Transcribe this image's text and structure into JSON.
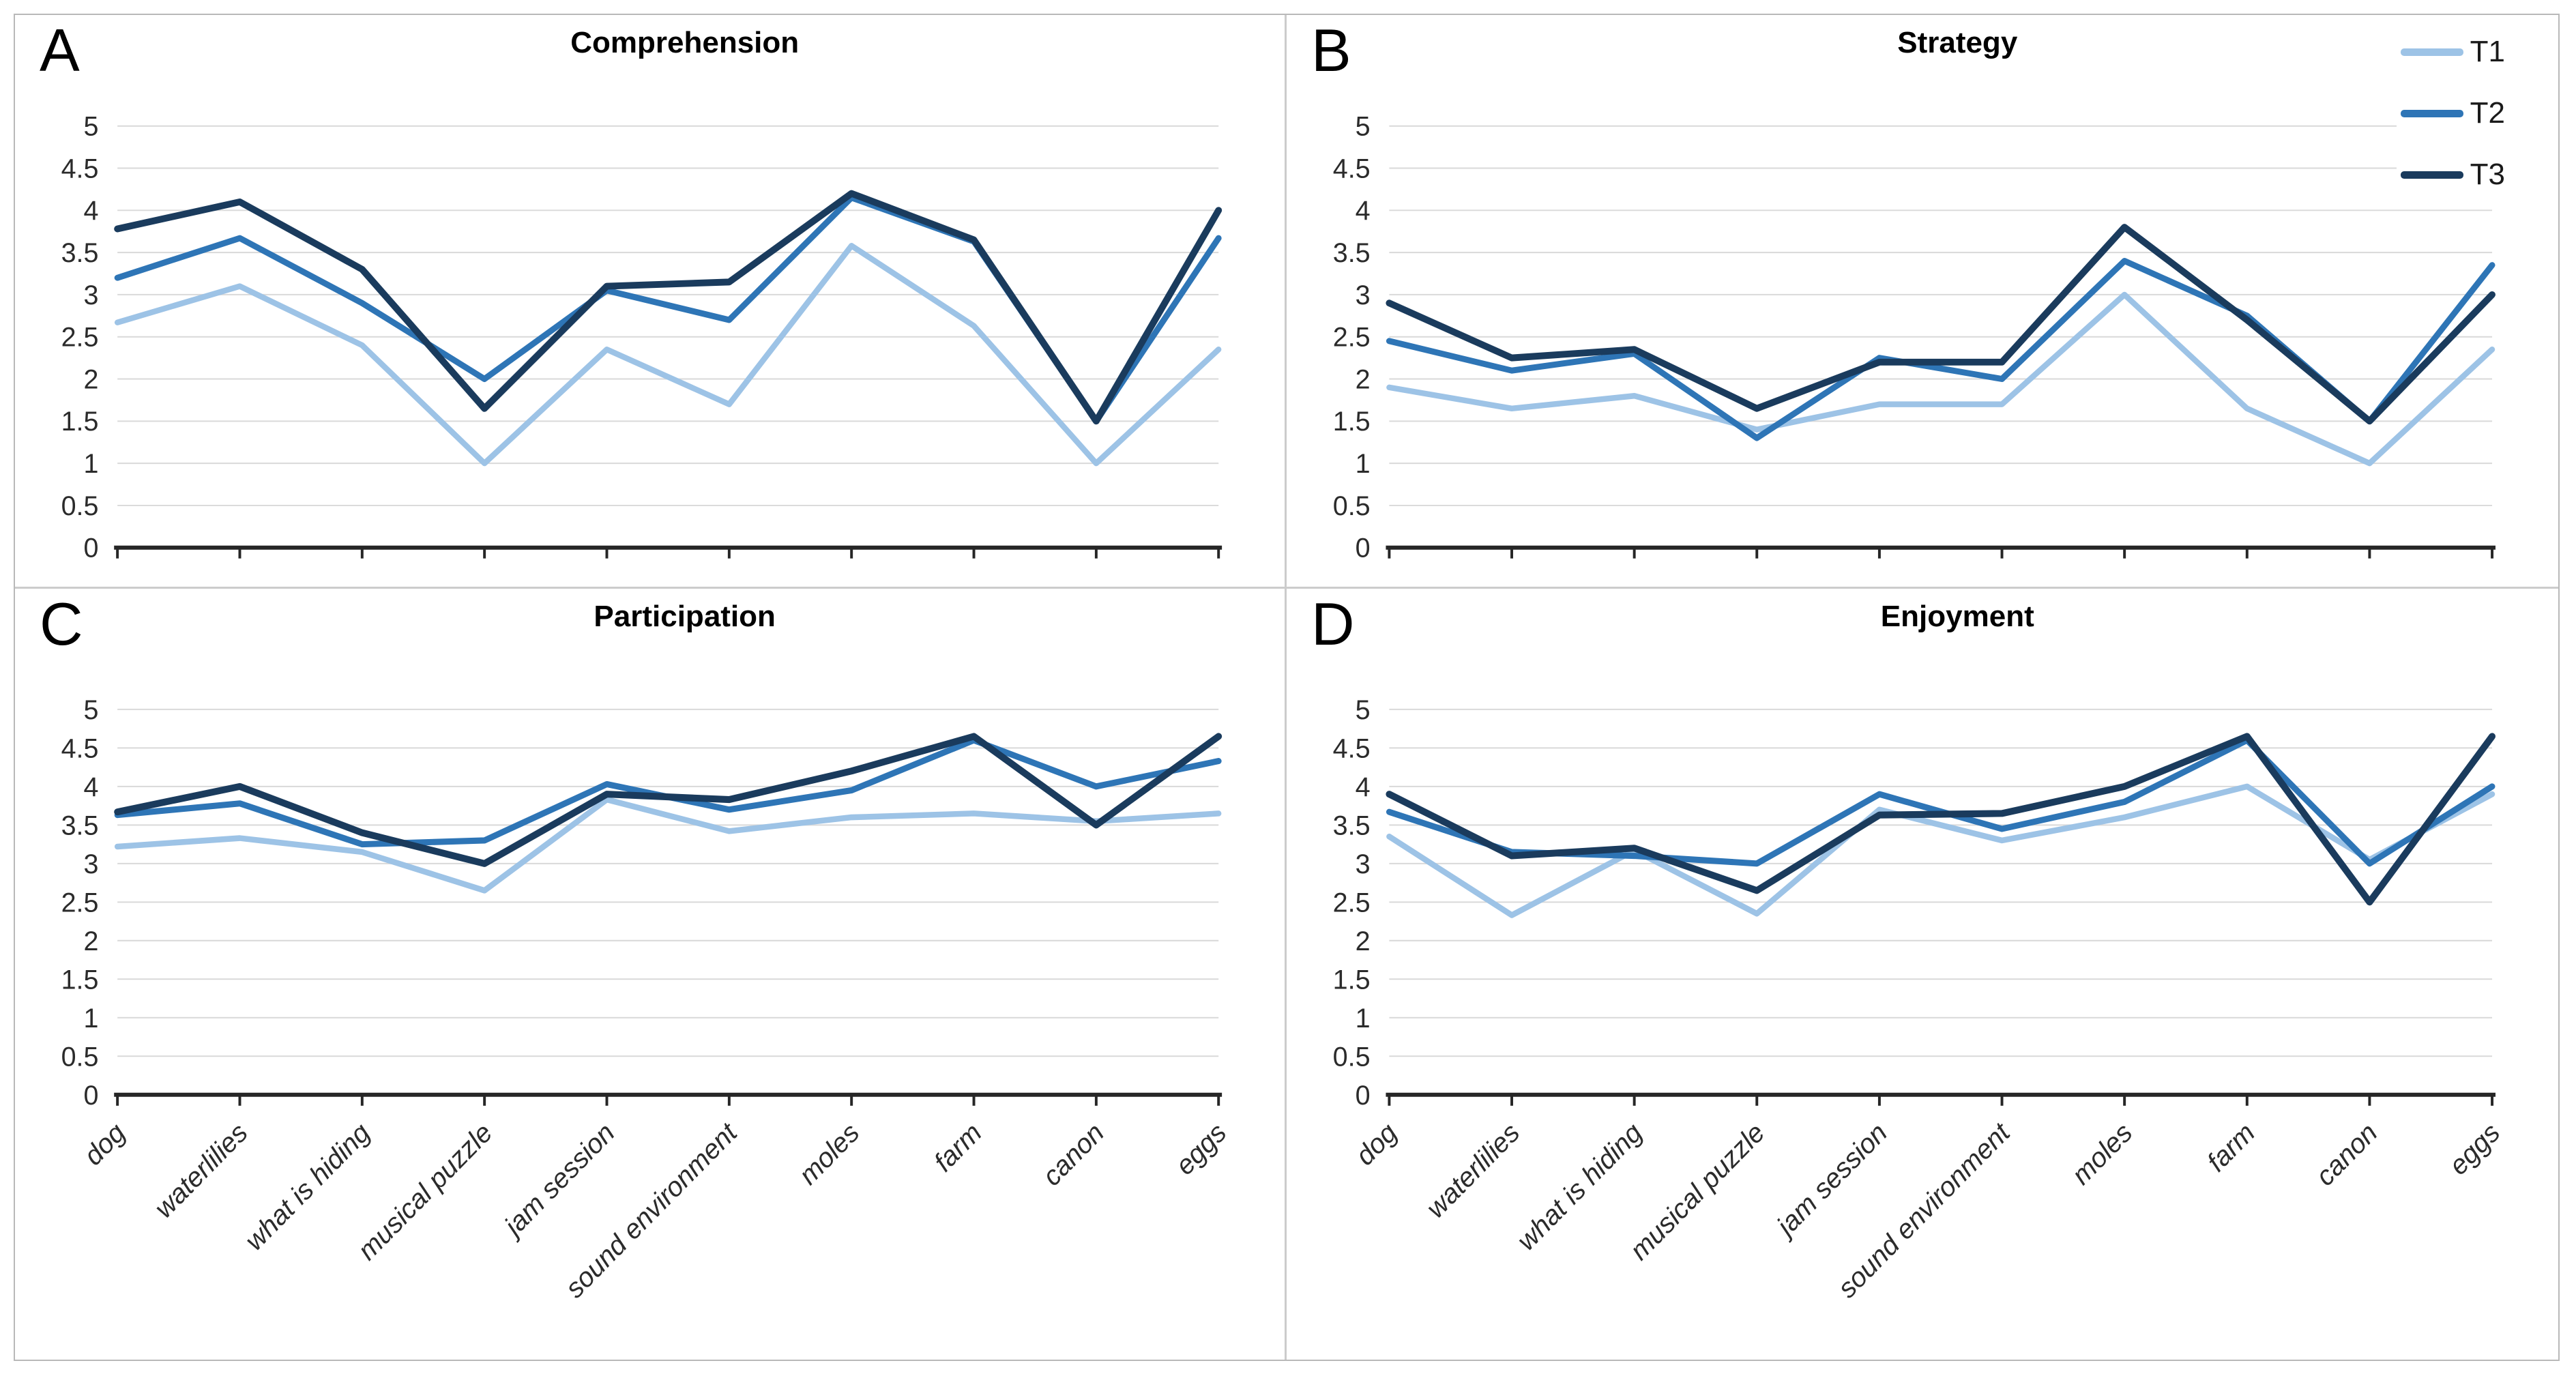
{
  "figure": {
    "background": "#ffffff",
    "outer_border_color": "#b9b9b9",
    "panel_divider_color": "#cccccc"
  },
  "colors": {
    "grid": "#d9d9d9",
    "axis": "#262626",
    "tick_label": "#2b2b2b",
    "title": "#000000"
  },
  "legend": {
    "position": "top-right",
    "items": [
      {
        "label": "T1",
        "color": "#9DC3E6"
      },
      {
        "label": "T2",
        "color": "#2E75B6"
      },
      {
        "label": "T3",
        "color": "#1A3B5D"
      }
    ]
  },
  "categories": [
    "dog",
    "waterlilies",
    "what is hiding",
    "musical puzzle",
    "jam session",
    "sound environment",
    "moles",
    "farm",
    "canon",
    "eggs"
  ],
  "y_axis": {
    "min": 0,
    "max": 5,
    "step": 0.5,
    "tick_labels": [
      "0",
      "0.5",
      "1",
      "1.5",
      "2",
      "2.5",
      "3",
      "3.5",
      "4",
      "4.5",
      "5"
    ]
  },
  "chart_data": [
    {
      "id": "A",
      "title": "Comprehension",
      "type": "line",
      "xlabel": "",
      "ylabel": "",
      "ylim": [
        0,
        5
      ],
      "grid": true,
      "x_labels_visible": false,
      "series": [
        {
          "name": "T1",
          "color": "#9DC3E6",
          "width": 8.5,
          "values": [
            2.67,
            3.1,
            2.4,
            1.0,
            2.35,
            1.7,
            3.58,
            2.63,
            1.0,
            2.35
          ]
        },
        {
          "name": "T2",
          "color": "#2E75B6",
          "width": 9,
          "values": [
            3.2,
            3.67,
            2.9,
            2.0,
            3.05,
            2.7,
            4.15,
            3.63,
            1.5,
            3.67
          ]
        },
        {
          "name": "T3",
          "color": "#1A3B5D",
          "width": 10,
          "values": [
            3.78,
            4.1,
            3.3,
            1.65,
            3.1,
            3.15,
            4.2,
            3.65,
            1.5,
            4.0
          ]
        }
      ]
    },
    {
      "id": "B",
      "title": "Strategy",
      "type": "line",
      "xlabel": "",
      "ylabel": "",
      "ylim": [
        0,
        5
      ],
      "grid": true,
      "x_labels_visible": false,
      "series": [
        {
          "name": "T1",
          "color": "#9DC3E6",
          "width": 8.5,
          "values": [
            1.9,
            1.65,
            1.8,
            1.4,
            1.7,
            1.7,
            3.0,
            1.65,
            1.0,
            2.35
          ]
        },
        {
          "name": "T2",
          "color": "#2E75B6",
          "width": 9,
          "values": [
            2.45,
            2.1,
            2.3,
            1.3,
            2.25,
            2.0,
            3.4,
            2.75,
            1.5,
            3.35
          ]
        },
        {
          "name": "T3",
          "color": "#1A3B5D",
          "width": 10,
          "values": [
            2.9,
            2.25,
            2.35,
            1.65,
            2.2,
            2.2,
            3.8,
            2.7,
            1.5,
            3.0
          ]
        }
      ]
    },
    {
      "id": "C",
      "title": "Participation",
      "type": "line",
      "xlabel": "",
      "ylabel": "",
      "ylim": [
        0,
        5
      ],
      "grid": true,
      "x_labels_visible": true,
      "series": [
        {
          "name": "T1",
          "color": "#9DC3E6",
          "width": 8.5,
          "values": [
            3.22,
            3.33,
            3.15,
            2.65,
            3.83,
            3.42,
            3.6,
            3.65,
            3.55,
            3.65
          ]
        },
        {
          "name": "T2",
          "color": "#2E75B6",
          "width": 9,
          "values": [
            3.63,
            3.78,
            3.25,
            3.3,
            4.03,
            3.7,
            3.95,
            4.6,
            4.0,
            4.33
          ]
        },
        {
          "name": "T3",
          "color": "#1A3B5D",
          "width": 10,
          "values": [
            3.67,
            4.0,
            3.4,
            3.0,
            3.9,
            3.83,
            4.2,
            4.65,
            3.5,
            4.65
          ]
        }
      ]
    },
    {
      "id": "D",
      "title": "Enjoyment",
      "type": "line",
      "xlabel": "",
      "ylabel": "",
      "ylim": [
        0,
        5
      ],
      "grid": true,
      "x_labels_visible": true,
      "series": [
        {
          "name": "T1",
          "color": "#9DC3E6",
          "width": 8.5,
          "values": [
            3.35,
            2.33,
            3.17,
            2.35,
            3.7,
            3.3,
            3.6,
            4.0,
            3.05,
            3.9
          ]
        },
        {
          "name": "T2",
          "color": "#2E75B6",
          "width": 9,
          "values": [
            3.67,
            3.15,
            3.1,
            3.0,
            3.9,
            3.45,
            3.8,
            4.6,
            3.0,
            4.0
          ]
        },
        {
          "name": "T3",
          "color": "#1A3B5D",
          "width": 10,
          "values": [
            3.9,
            3.1,
            3.2,
            2.65,
            3.63,
            3.65,
            4.0,
            4.65,
            2.5,
            4.65
          ]
        }
      ]
    }
  ]
}
